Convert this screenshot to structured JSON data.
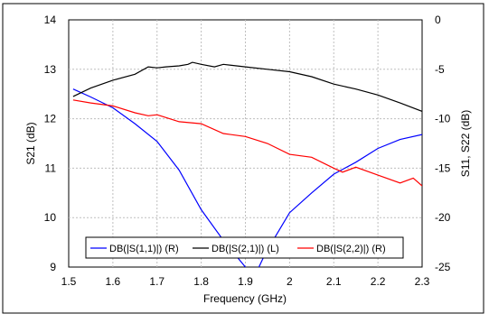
{
  "chart_data": {
    "type": "line",
    "xlabel": "Frequency (GHz)",
    "ylabel_left": "S21 (dB)",
    "ylabel_right": "S11, S22 (dB)",
    "xlim": [
      1.5,
      2.3
    ],
    "ylim_left": [
      9,
      14
    ],
    "ylim_right": [
      -25,
      0
    ],
    "x_ticks": [
      "1.5",
      "1.6",
      "1.7",
      "1.8",
      "1.9",
      "2",
      "2.1",
      "2.2",
      "2.3"
    ],
    "y_left_ticks": [
      "9",
      "10",
      "11",
      "12",
      "13",
      "14"
    ],
    "y_right_ticks": [
      "-25",
      "-20",
      "-15",
      "-10",
      "-5",
      "0"
    ],
    "grid": true,
    "legend_position": "bottom-center",
    "series": [
      {
        "name": "DB(|S(1,1)|) (R)",
        "axis": "right",
        "color": "#0000ff",
        "x": [
          1.51,
          1.55,
          1.6,
          1.65,
          1.7,
          1.75,
          1.8,
          1.85,
          1.9,
          1.92,
          1.94,
          1.96,
          1.98,
          2.0,
          2.05,
          2.1,
          2.15,
          2.2,
          2.25,
          2.3
        ],
        "y": [
          -7.0,
          -7.8,
          -8.9,
          -10.5,
          -12.3,
          -15.2,
          -19.2,
          -22.3,
          -25.0,
          -26.0,
          -24.1,
          -22.5,
          -21.0,
          -19.5,
          -17.5,
          -15.6,
          -14.4,
          -13.0,
          -12.1,
          -11.6
        ]
      },
      {
        "name": "DB(|S(2,1)|) (L)",
        "axis": "left",
        "color": "#000000",
        "x": [
          1.51,
          1.55,
          1.6,
          1.65,
          1.68,
          1.7,
          1.72,
          1.75,
          1.77,
          1.78,
          1.8,
          1.83,
          1.85,
          1.88,
          1.9,
          1.95,
          2.0,
          2.05,
          2.1,
          2.15,
          2.2,
          2.25,
          2.3
        ],
        "y": [
          12.45,
          12.62,
          12.78,
          12.9,
          13.05,
          13.03,
          13.05,
          13.07,
          13.1,
          13.14,
          13.1,
          13.05,
          13.1,
          13.07,
          13.05,
          13.0,
          12.95,
          12.85,
          12.7,
          12.6,
          12.48,
          12.32,
          12.15
        ]
      },
      {
        "name": "DB(|S(2,2)|) (R)",
        "axis": "right",
        "color": "#ff0000",
        "x": [
          1.51,
          1.55,
          1.6,
          1.65,
          1.68,
          1.7,
          1.75,
          1.8,
          1.85,
          1.9,
          1.95,
          2.0,
          2.05,
          2.1,
          2.12,
          2.15,
          2.2,
          2.25,
          2.28,
          2.3
        ],
        "y": [
          -8.1,
          -8.4,
          -8.7,
          -9.4,
          -9.7,
          -9.6,
          -10.3,
          -10.5,
          -11.5,
          -11.8,
          -12.5,
          -13.6,
          -13.9,
          -15.0,
          -15.4,
          -14.9,
          -15.7,
          -16.5,
          -16.0,
          -16.8
        ]
      }
    ]
  }
}
